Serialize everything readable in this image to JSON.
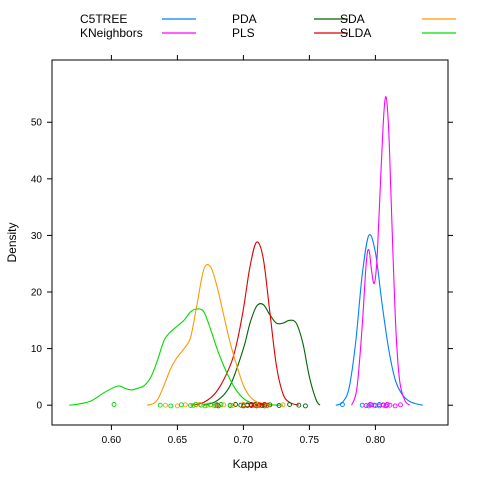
{
  "chart_data": {
    "type": "line",
    "subtype": "density",
    "xlabel": "Kappa",
    "ylabel": "Density",
    "xlim": [
      0.555,
      0.855
    ],
    "ylim": [
      -3.5,
      61
    ],
    "xticks": [
      0.6,
      0.65,
      0.7,
      0.75,
      0.8
    ],
    "xtick_labels": [
      "0.60",
      "0.65",
      "0.70",
      "0.75",
      "0.80"
    ],
    "yticks": [
      0,
      10,
      20,
      30,
      40,
      50
    ],
    "ytick_labels": [
      "0",
      "10",
      "20",
      "30",
      "40",
      "50"
    ],
    "legend_position": "top",
    "series": [
      {
        "name": "C5TREE",
        "color": "#0080ff",
        "x": [
          0.77,
          0.775,
          0.78,
          0.785,
          0.79,
          0.795,
          0.8,
          0.805,
          0.81,
          0.815,
          0.82,
          0.825,
          0.83,
          0.836
        ],
        "y": [
          0,
          0.5,
          3,
          11,
          23,
          30,
          27,
          18,
          10,
          4.5,
          2,
          0.8,
          0.3,
          0
        ],
        "points": [
          0.775,
          0.79,
          0.795,
          0.797,
          0.8,
          0.803,
          0.806,
          0.808
        ]
      },
      {
        "name": "KNeighbors",
        "color": "#ff00ff",
        "x": [
          0.782,
          0.786,
          0.79,
          0.793,
          0.795,
          0.797,
          0.799,
          0.801,
          0.803,
          0.806,
          0.808,
          0.81,
          0.812,
          0.815,
          0.818,
          0.822,
          0.826
        ],
        "y": [
          0,
          3,
          14,
          25,
          27.5,
          24,
          21.5,
          25,
          35,
          50,
          54.5,
          49,
          36,
          16,
          5,
          1,
          0
        ],
        "points": [
          0.793,
          0.796,
          0.799,
          0.803,
          0.806,
          0.808,
          0.809,
          0.811,
          0.815,
          0.819
        ]
      },
      {
        "name": "PDA",
        "color": "#006400",
        "x": [
          0.67,
          0.68,
          0.69,
          0.7,
          0.705,
          0.71,
          0.715,
          0.72,
          0.725,
          0.73,
          0.735,
          0.74,
          0.745,
          0.75,
          0.755,
          0.758
        ],
        "y": [
          0,
          0.8,
          3.5,
          10,
          14.5,
          17.5,
          17.8,
          16,
          14.5,
          14.5,
          15,
          14.5,
          11,
          5,
          1,
          0
        ],
        "points": [
          0.68,
          0.69,
          0.694,
          0.698,
          0.7,
          0.703,
          0.706,
          0.709,
          0.712,
          0.716,
          0.72,
          0.727,
          0.735,
          0.742,
          0.747
        ]
      },
      {
        "name": "PLS",
        "color": "#dd0000",
        "x": [
          0.66,
          0.67,
          0.68,
          0.69,
          0.695,
          0.7,
          0.705,
          0.71,
          0.715,
          0.72,
          0.725,
          0.73,
          0.735,
          0.742
        ],
        "y": [
          0,
          0.5,
          2.5,
          7,
          11,
          17,
          24.5,
          28.8,
          26,
          16.5,
          7,
          2,
          0.5,
          0
        ],
        "points": [
          0.681,
          0.7,
          0.703,
          0.706,
          0.708,
          0.71,
          0.712,
          0.714,
          0.716,
          0.718
        ]
      },
      {
        "name": "SDA",
        "color": "#ff9900",
        "x": [
          0.627,
          0.635,
          0.645,
          0.65,
          0.655,
          0.66,
          0.665,
          0.67,
          0.675,
          0.68,
          0.685,
          0.69,
          0.695,
          0.7,
          0.705,
          0.71,
          0.715,
          0.72,
          0.725
        ],
        "y": [
          0,
          1,
          6.5,
          8.5,
          10,
          12,
          18,
          24,
          24.5,
          21,
          16,
          11,
          7,
          3.5,
          1.5,
          0.6,
          0.3,
          0.1,
          0
        ],
        "points": [
          0.641,
          0.65,
          0.656,
          0.662,
          0.667,
          0.673,
          0.678,
          0.685,
          0.692,
          0.7,
          0.71,
          0.718,
          0.73
        ]
      },
      {
        "name": "SLDA",
        "color": "#00dd00",
        "x": [
          0.568,
          0.575,
          0.585,
          0.595,
          0.605,
          0.61,
          0.615,
          0.62,
          0.625,
          0.63,
          0.635,
          0.64,
          0.645,
          0.65,
          0.655,
          0.66,
          0.665,
          0.67,
          0.675,
          0.68,
          0.685,
          0.69,
          0.695,
          0.7,
          0.705,
          0.71,
          0.715,
          0.72,
          0.725,
          0.73
        ],
        "y": [
          0,
          0.2,
          0.8,
          2.3,
          3.4,
          3,
          2.7,
          3,
          3.5,
          5,
          8,
          11.5,
          13,
          14,
          15,
          16.5,
          17,
          16.5,
          13.5,
          10,
          7,
          4.5,
          2.5,
          1.2,
          0.5,
          0.2,
          0.1,
          0.05,
          0.02,
          0
        ],
        "points": [
          0.602,
          0.637,
          0.645,
          0.653,
          0.66,
          0.664,
          0.668,
          0.671,
          0.675,
          0.679,
          0.683,
          0.69
        ]
      }
    ]
  }
}
